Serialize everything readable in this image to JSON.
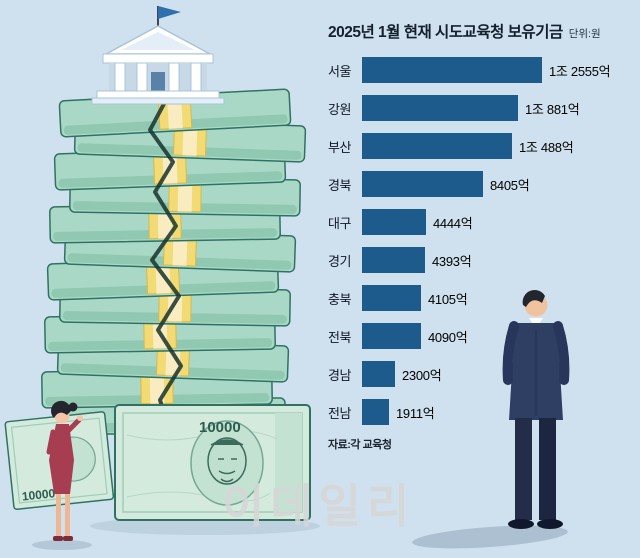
{
  "chart": {
    "title": "2025년 1월 현재 시도교육청 보유기금",
    "unit_label": "단위:원",
    "source": "자료:각 교육청",
    "bar_color": "#1d5b8c"
  },
  "chart_data": {
    "type": "bar",
    "orientation": "horizontal",
    "title": "2025년 1월 현재 시도교육청 보유기금",
    "unit": "원",
    "categories": [
      "서울",
      "강원",
      "부산",
      "경북",
      "대구",
      "경기",
      "충북",
      "전북",
      "경남",
      "전남"
    ],
    "values_billion_won": [
      12555,
      10881,
      10488,
      8405,
      4444,
      4393,
      4105,
      4090,
      2300,
      1911
    ],
    "value_labels": [
      "1조 2555억",
      "1조 881억",
      "1조 488억",
      "8405억",
      "4444억",
      "4393억",
      "4105억",
      "4090억",
      "2300억",
      "1911억"
    ],
    "xlim": [
      0,
      12555
    ],
    "source": "자료:각 교육청",
    "legend": "none",
    "grid": "off"
  },
  "watermark": {
    "text": "이데일리"
  },
  "illustration": {
    "banknote_value": "10000",
    "colors": {
      "background": "#cfe1ee",
      "money_face": "#a9d9c6",
      "money_edge": "#2f7263",
      "money_band": "#f2da74",
      "suit": "#2e3f63",
      "dress": "#a63d50"
    }
  }
}
